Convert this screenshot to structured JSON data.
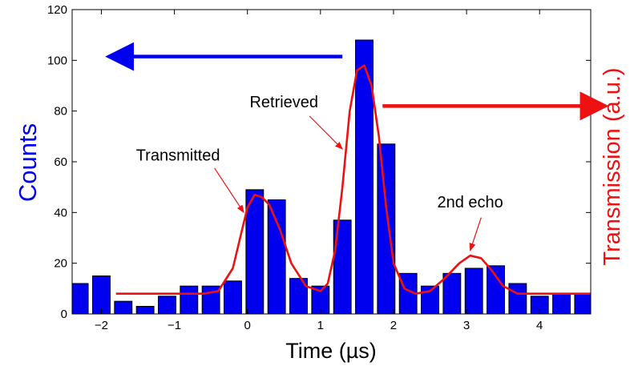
{
  "chart_data": {
    "type": "bar",
    "xlabel": "Time (µs)",
    "ylabel": "Counts",
    "ylabel_right": "Transmission (a.u.)",
    "xlim": [
      -2.4,
      4.7
    ],
    "ylim": [
      0,
      120
    ],
    "xticks": [
      -2,
      -1,
      0,
      1,
      2,
      3,
      4
    ],
    "xtick_labels": [
      "−2",
      "−1",
      "0",
      "1",
      "2",
      "3",
      "4"
    ],
    "yticks": [
      0,
      20,
      40,
      60,
      80,
      100,
      120
    ],
    "bar_color": "#0000ee",
    "line_color": "#ee1111",
    "bar_width": 0.24,
    "series": [
      {
        "type": "bar",
        "x": [
          -2.3,
          -2.0,
          -1.7,
          -1.4,
          -1.1,
          -0.8,
          -0.5,
          -0.2,
          0.1,
          0.4,
          0.7,
          1.0,
          1.3,
          1.6,
          1.9,
          2.2,
          2.5,
          2.8,
          3.1,
          3.4,
          3.7,
          4.0,
          4.3,
          4.6
        ],
        "values": [
          12,
          15,
          5,
          3,
          7,
          11,
          11,
          13,
          49,
          45,
          14,
          11,
          37,
          108,
          67,
          16,
          11,
          16,
          18,
          19,
          12,
          7,
          8,
          8
        ]
      },
      {
        "type": "line",
        "x": [
          -1.8,
          -1.5,
          -1.2,
          -0.9,
          -0.6,
          -0.4,
          -0.2,
          -0.1,
          0.0,
          0.1,
          0.2,
          0.3,
          0.45,
          0.6,
          0.8,
          1.0,
          1.1,
          1.2,
          1.3,
          1.4,
          1.5,
          1.6,
          1.7,
          1.8,
          1.9,
          2.0,
          2.15,
          2.3,
          2.5,
          2.7,
          2.9,
          3.05,
          3.2,
          3.35,
          3.5,
          3.7,
          3.9,
          4.1,
          4.3,
          4.5,
          4.7
        ],
        "values": [
          8,
          8,
          8,
          8,
          8,
          9,
          18,
          30,
          42,
          47,
          46,
          43,
          33,
          20,
          11,
          9,
          12,
          25,
          50,
          80,
          96,
          98,
          90,
          70,
          42,
          20,
          10,
          8,
          9,
          14,
          20,
          23,
          22,
          17,
          11,
          8,
          8,
          8,
          8,
          8,
          8
        ]
      }
    ],
    "arrows": [
      {
        "color": "#0000ee",
        "from": [
          1.3,
          101.5
        ],
        "to": [
          -1.75,
          101.5
        ]
      },
      {
        "color": "#ee1111",
        "from": [
          1.85,
          82
        ],
        "to": [
          4.75,
          82
        ]
      }
    ],
    "annotations": [
      {
        "text": "Transmitted",
        "x": -0.95,
        "y": 60.5,
        "arrow_to": [
          -0.05,
          40
        ],
        "arrow_from": [
          -0.45,
          57.5
        ]
      },
      {
        "text": "Retrieved",
        "x": 0.5,
        "y": 81.5,
        "arrow_to": [
          1.3,
          65
        ],
        "arrow_from": [
          0.85,
          78
        ]
      },
      {
        "text": "2nd echo",
        "x": 3.05,
        "y": 42,
        "arrow_to": [
          3.05,
          25
        ],
        "arrow_from": [
          3.2,
          38
        ]
      }
    ]
  }
}
